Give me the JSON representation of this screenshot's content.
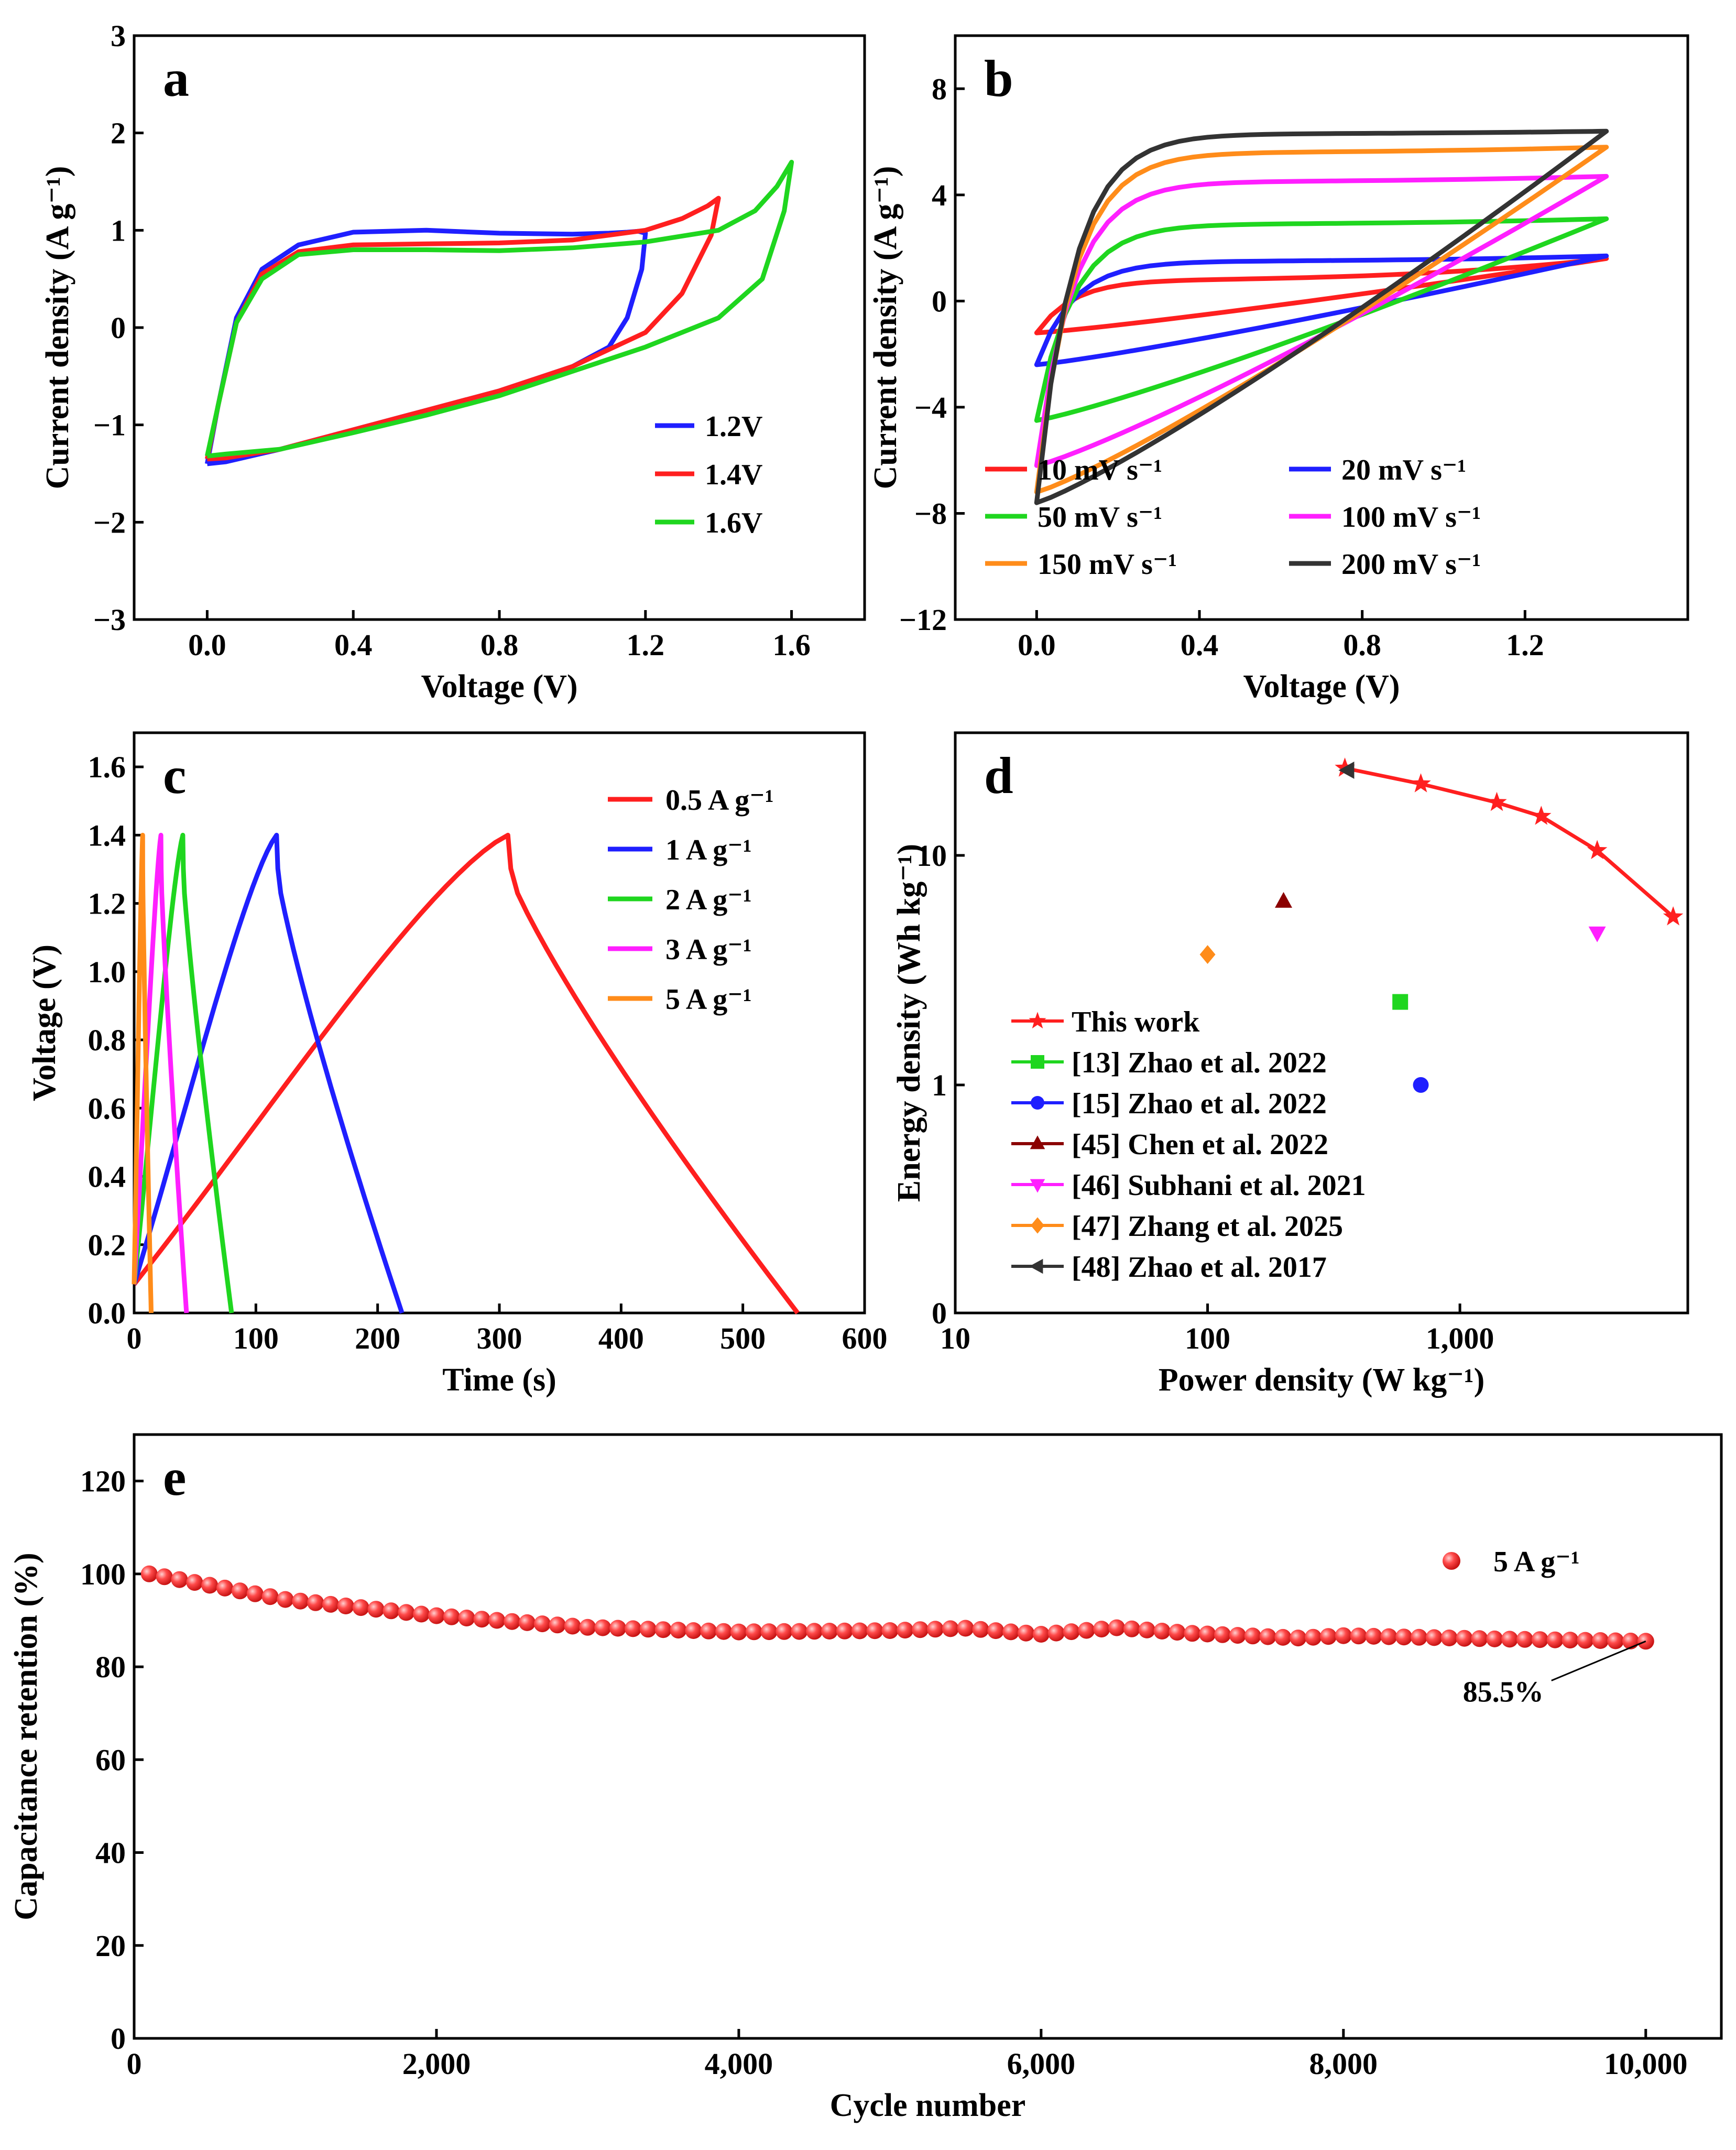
{
  "chart_data": [
    {
      "id": "a",
      "type": "line",
      "panel_label": "a",
      "xlabel": "Voltage (V)",
      "ylabel": "Current density (A g⁻¹)",
      "xlim": [
        -0.2,
        1.8
      ],
      "ylim": [
        -3,
        3
      ],
      "xticks": [
        "0.0",
        "0.4",
        "0.8",
        "1.2",
        "1.6"
      ],
      "yticks": [
        "−3",
        "−2",
        "−1",
        "0",
        "1",
        "2",
        "3"
      ],
      "legend_position": "bottom-right",
      "series": [
        {
          "name": "1.2V",
          "color": "#1f1fff",
          "x": [
            0,
            0.03,
            0.08,
            0.15,
            0.25,
            0.4,
            0.6,
            0.8,
            1.0,
            1.1,
            1.15,
            1.18,
            1.2,
            1.19,
            1.15,
            1.1,
            1.0,
            0.8,
            0.6,
            0.4,
            0.2,
            0.05,
            0
          ],
          "y": [
            -1.4,
            -0.8,
            0.1,
            0.6,
            0.85,
            0.98,
            1.0,
            0.97,
            0.96,
            0.97,
            0.98,
            0.99,
            0.97,
            0.6,
            0.1,
            -0.2,
            -0.4,
            -0.65,
            -0.85,
            -1.05,
            -1.25,
            -1.38,
            -1.4
          ]
        },
        {
          "name": "1.4V",
          "color": "#ff1f1f",
          "x": [
            0,
            0.03,
            0.08,
            0.15,
            0.25,
            0.4,
            0.6,
            0.8,
            1.0,
            1.2,
            1.3,
            1.37,
            1.4,
            1.38,
            1.3,
            1.2,
            1.0,
            0.8,
            0.6,
            0.4,
            0.2,
            0.05,
            0
          ],
          "y": [
            -1.35,
            -0.8,
            0.05,
            0.55,
            0.78,
            0.85,
            0.86,
            0.87,
            0.9,
            1.0,
            1.12,
            1.25,
            1.33,
            0.95,
            0.35,
            -0.05,
            -0.4,
            -0.65,
            -0.85,
            -1.05,
            -1.25,
            -1.34,
            -1.35
          ]
        },
        {
          "name": "1.6V",
          "color": "#1fd61f",
          "x": [
            0,
            0.03,
            0.08,
            0.15,
            0.25,
            0.4,
            0.6,
            0.8,
            1.0,
            1.2,
            1.4,
            1.5,
            1.56,
            1.6,
            1.58,
            1.52,
            1.4,
            1.2,
            1.0,
            0.8,
            0.6,
            0.4,
            0.2,
            0.05,
            0
          ],
          "y": [
            -1.32,
            -0.8,
            0.05,
            0.5,
            0.75,
            0.8,
            0.8,
            0.79,
            0.82,
            0.88,
            1.0,
            1.2,
            1.45,
            1.7,
            1.2,
            0.5,
            0.1,
            -0.2,
            -0.45,
            -0.7,
            -0.9,
            -1.08,
            -1.25,
            -1.3,
            -1.32
          ]
        }
      ]
    },
    {
      "id": "b",
      "type": "line",
      "panel_label": "b",
      "xlabel": "Voltage (V)",
      "ylabel": "Current density (A g⁻¹)",
      "xlim": [
        -0.2,
        1.6
      ],
      "ylim": [
        -12,
        10
      ],
      "xticks": [
        "0.0",
        "0.4",
        "0.8",
        "1.2"
      ],
      "yticks": [
        "−12",
        "−8",
        "−4",
        "0",
        "4",
        "8"
      ],
      "legend_position": "bottom",
      "series": [
        {
          "name": "10 mV s⁻¹",
          "color": "#ff1f1f",
          "scan": 10,
          "low": -1.2,
          "high": 1.6,
          "plateau": 0.8,
          "slope": 0.5
        },
        {
          "name": "20 mV s⁻¹",
          "color": "#1f1fff",
          "scan": 20,
          "low": -2.4,
          "high": 1.7,
          "plateau": 1.5,
          "slope": 0.55
        },
        {
          "name": "50 mV s⁻¹",
          "color": "#1fd61f",
          "scan": 50,
          "low": -4.5,
          "high": 3.1,
          "plateau": 2.9,
          "slope": 0.6
        },
        {
          "name": "100 mV s⁻¹",
          "color": "#ff1fff",
          "scan": 100,
          "low": -6.2,
          "high": 4.7,
          "plateau": 4.5,
          "slope": 0.7
        },
        {
          "name": "150 mV s⁻¹",
          "color": "#ff8c1a",
          "scan": 150,
          "low": -7.2,
          "high": 5.8,
          "plateau": 5.6,
          "slope": 0.8
        },
        {
          "name": "200 mV s⁻¹",
          "color": "#333333",
          "scan": 200,
          "low": -7.6,
          "high": 6.4,
          "plateau": 6.3,
          "slope": 0.85
        }
      ]
    },
    {
      "id": "c",
      "type": "line",
      "panel_label": "c",
      "xlabel": "Time (s)",
      "ylabel": "Voltage (V)",
      "xlim": [
        0,
        600
      ],
      "ylim": [
        0,
        1.7
      ],
      "xticks": [
        "0",
        "100",
        "200",
        "300",
        "400",
        "500",
        "600"
      ],
      "yticks": [
        "0.0",
        "0.2",
        "0.4",
        "0.6",
        "0.8",
        "1.0",
        "1.2",
        "1.4",
        "1.6"
      ],
      "legend_position": "top-right",
      "series": [
        {
          "name": "0.5 A g⁻¹",
          "color": "#ff1f1f",
          "peak_t": 307,
          "end_t": 545
        },
        {
          "name": "1 A g⁻¹",
          "color": "#1f1fff",
          "peak_t": 117,
          "end_t": 220
        },
        {
          "name": "2 A g⁻¹",
          "color": "#1fd61f",
          "peak_t": 40,
          "end_t": 80
        },
        {
          "name": "3 A g⁻¹",
          "color": "#ff1fff",
          "peak_t": 22,
          "end_t": 43
        },
        {
          "name": "5 A g⁻¹",
          "color": "#ff8c1a",
          "peak_t": 7,
          "end_t": 14
        }
      ]
    },
    {
      "id": "d",
      "type": "scatter",
      "panel_label": "d",
      "xlabel": "Power density (W kg⁻¹)",
      "ylabel": "Energy density (Wh kg⁻¹)",
      "xscale": "log",
      "xlim": [
        10,
        8000
      ],
      "xticks": [
        "10",
        "100",
        "1,000"
      ],
      "yticks": [
        "0",
        "1",
        "10"
      ],
      "legend_position": "bottom-left",
      "series": [
        {
          "name": "This work",
          "color": "#ff1f1f",
          "marker": "star",
          "line": true,
          "x": [
            350,
            700,
            1400,
            2100,
            3500,
            7000
          ],
          "y": [
            24.0,
            20.5,
            17.0,
            14.8,
            10.5,
            5.4
          ]
        },
        {
          "name": "[13] Zhao et al. 2022",
          "color": "#1fd61f",
          "marker": "square",
          "x": [
            580
          ],
          "y": [
            2.3
          ]
        },
        {
          "name": "[15] Zhao et al. 2022",
          "color": "#1f1fff",
          "marker": "circle",
          "x": [
            700
          ],
          "y": [
            1.0
          ]
        },
        {
          "name": "[45] Chen et al. 2022",
          "color": "#8b0000",
          "marker": "triangle-up",
          "x": [
            200
          ],
          "y": [
            6.3
          ]
        },
        {
          "name": "[46] Subhani et al. 2021",
          "color": "#ff1fff",
          "marker": "triangle-down",
          "x": [
            3500
          ],
          "y": [
            4.6
          ]
        },
        {
          "name": "[47] Zhang et al. 2025",
          "color": "#ff8c1a",
          "marker": "diamond",
          "x": [
            100
          ],
          "y": [
            3.7
          ]
        },
        {
          "name": "[48] Zhao et al. 2017",
          "color": "#333333",
          "marker": "triangle-left",
          "x": [
            360
          ],
          "y": [
            23.5
          ]
        }
      ]
    },
    {
      "id": "e",
      "type": "scatter",
      "panel_label": "e",
      "xlabel": "Cycle number",
      "ylabel": "Capacitance retention (%)",
      "xlim": [
        0,
        10500
      ],
      "ylim": [
        0,
        130
      ],
      "xticks": [
        "0",
        "2,000",
        "4,000",
        "6,000",
        "8,000",
        "10,000"
      ],
      "yticks": [
        "0",
        "20",
        "40",
        "60",
        "80",
        "100",
        "120"
      ],
      "legend_position": "top-right",
      "annotation": "85.5%",
      "series": [
        {
          "name": "5 A g⁻¹",
          "color": "#ff3b3b",
          "marker": "sphere",
          "x": [
            100,
            1000,
            2000,
            3000,
            4000,
            5000,
            5500,
            6000,
            6500,
            7000,
            7700,
            8000,
            9000,
            10000
          ],
          "y": [
            100,
            94.5,
            91,
            88.5,
            87.5,
            87.8,
            88.3,
            87.0,
            88.4,
            87.2,
            86.2,
            86.7,
            86.0,
            85.5
          ]
        }
      ]
    }
  ]
}
